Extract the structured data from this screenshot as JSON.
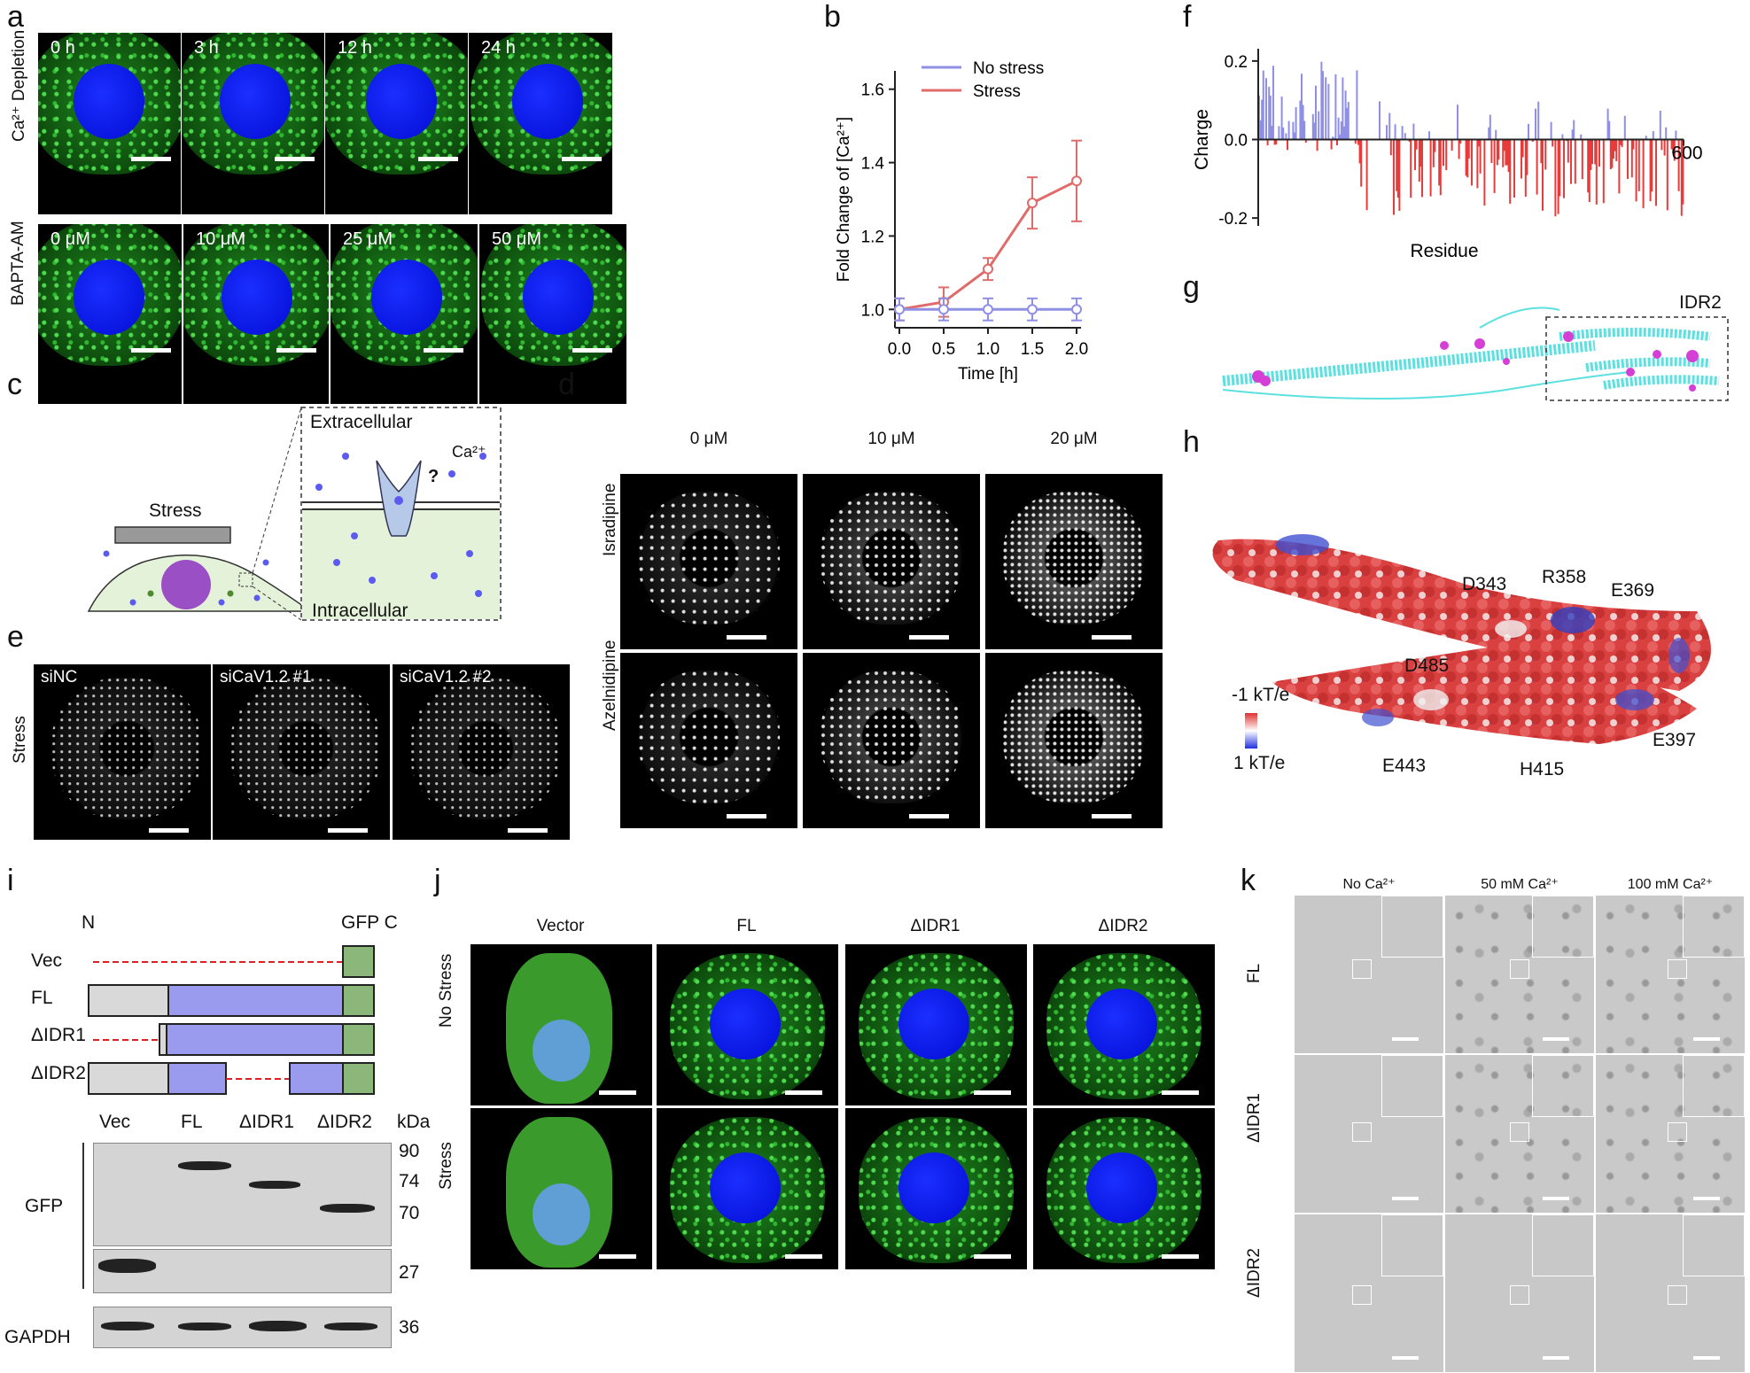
{
  "panels": {
    "a": "a",
    "b": "b",
    "c": "c",
    "d": "d",
    "e": "e",
    "f": "f",
    "g": "g",
    "h": "h",
    "i": "i",
    "j": "j",
    "k": "k"
  },
  "panel_a": {
    "row1_label": "Ca²⁺ Depletion",
    "row2_label": "BAPTA-AM",
    "row1_times": [
      "0 h",
      "3 h",
      "12 h",
      "24 h"
    ],
    "row2_doses": [
      "0 μM",
      "10 μM",
      "25 μM",
      "50 μM"
    ]
  },
  "panel_c": {
    "stress": "Stress",
    "extracellular": "Extracellular",
    "intracellular": "Intracellular",
    "ca": "Ca²⁺",
    "question": "?"
  },
  "panel_d": {
    "doses": [
      "0 μM",
      "10 μM",
      "20 μM"
    ],
    "rows": [
      "Isradipine",
      "Azelnidipine"
    ]
  },
  "panel_e": {
    "row_label": "Stress",
    "labels": [
      "siNC",
      "siCaV1.2 #1",
      "siCaV1.2 #2"
    ]
  },
  "panel_g": {
    "idr2": "IDR2"
  },
  "panel_h": {
    "residues": [
      "D343",
      "R358",
      "E369",
      "D485",
      "E443",
      "H415",
      "E397"
    ],
    "scale_top": "-1 kT/e",
    "scale_bottom": "1 kT/e"
  },
  "panel_i": {
    "n": "N",
    "gfp_c": "GFP C",
    "constructs": [
      "Vec",
      "FL",
      "ΔIDR1",
      "ΔIDR2"
    ],
    "lanes": [
      "Vec",
      "FL",
      "ΔIDR1",
      "ΔIDR2"
    ],
    "kda": "kDa",
    "markers": [
      "90",
      "74",
      "70",
      "27",
      "36"
    ],
    "blot_gfp": "GFP",
    "blot_gapdh": "GAPDH"
  },
  "panel_j": {
    "columns": [
      "Vector",
      "FL",
      "ΔIDR1",
      "ΔIDR2"
    ],
    "rows": [
      "No Stress",
      "Stress"
    ]
  },
  "panel_k": {
    "columns": [
      "No Ca²⁺",
      "50 mM Ca²⁺",
      "100 mM Ca²⁺"
    ],
    "rows": [
      "FL",
      "ΔIDR1",
      "ΔIDR2"
    ]
  },
  "chart_data": [
    {
      "type": "line",
      "panel": "b",
      "xlabel": "Time [h]",
      "ylabel": "Fold Change of [Ca²⁺]",
      "x": [
        0.0,
        0.5,
        1.0,
        1.5,
        2.0
      ],
      "x_ticks": [
        "0.0",
        "0.5",
        "1.0",
        "1.5",
        "2.0"
      ],
      "y_ticks": [
        "1.0",
        "1.2",
        "1.4",
        "1.6"
      ],
      "ylim": [
        0.95,
        1.65
      ],
      "legend_position": "top-right",
      "series": [
        {
          "name": "No stress",
          "color": "#8f8fe6",
          "values": [
            1.0,
            1.0,
            1.0,
            1.0,
            1.0
          ],
          "err": [
            0.03,
            0.03,
            0.03,
            0.03,
            0.03
          ]
        },
        {
          "name": "Stress",
          "color": "#e06b6b",
          "values": [
            1.0,
            1.02,
            1.11,
            1.29,
            1.35
          ],
          "err": [
            0.03,
            0.04,
            0.03,
            0.07,
            0.11
          ]
        }
      ]
    },
    {
      "type": "bar",
      "panel": "f",
      "xlabel": "Residue",
      "ylabel": "Charge",
      "y_ticks": [
        "0.2",
        "0.0",
        "-0.2"
      ],
      "x_tick_label": "600",
      "ylim": [
        -0.22,
        0.22
      ],
      "xlim": [
        0,
        600
      ],
      "positive_color": "#8f8fe6",
      "negative_color": "#e83b3b"
    }
  ]
}
